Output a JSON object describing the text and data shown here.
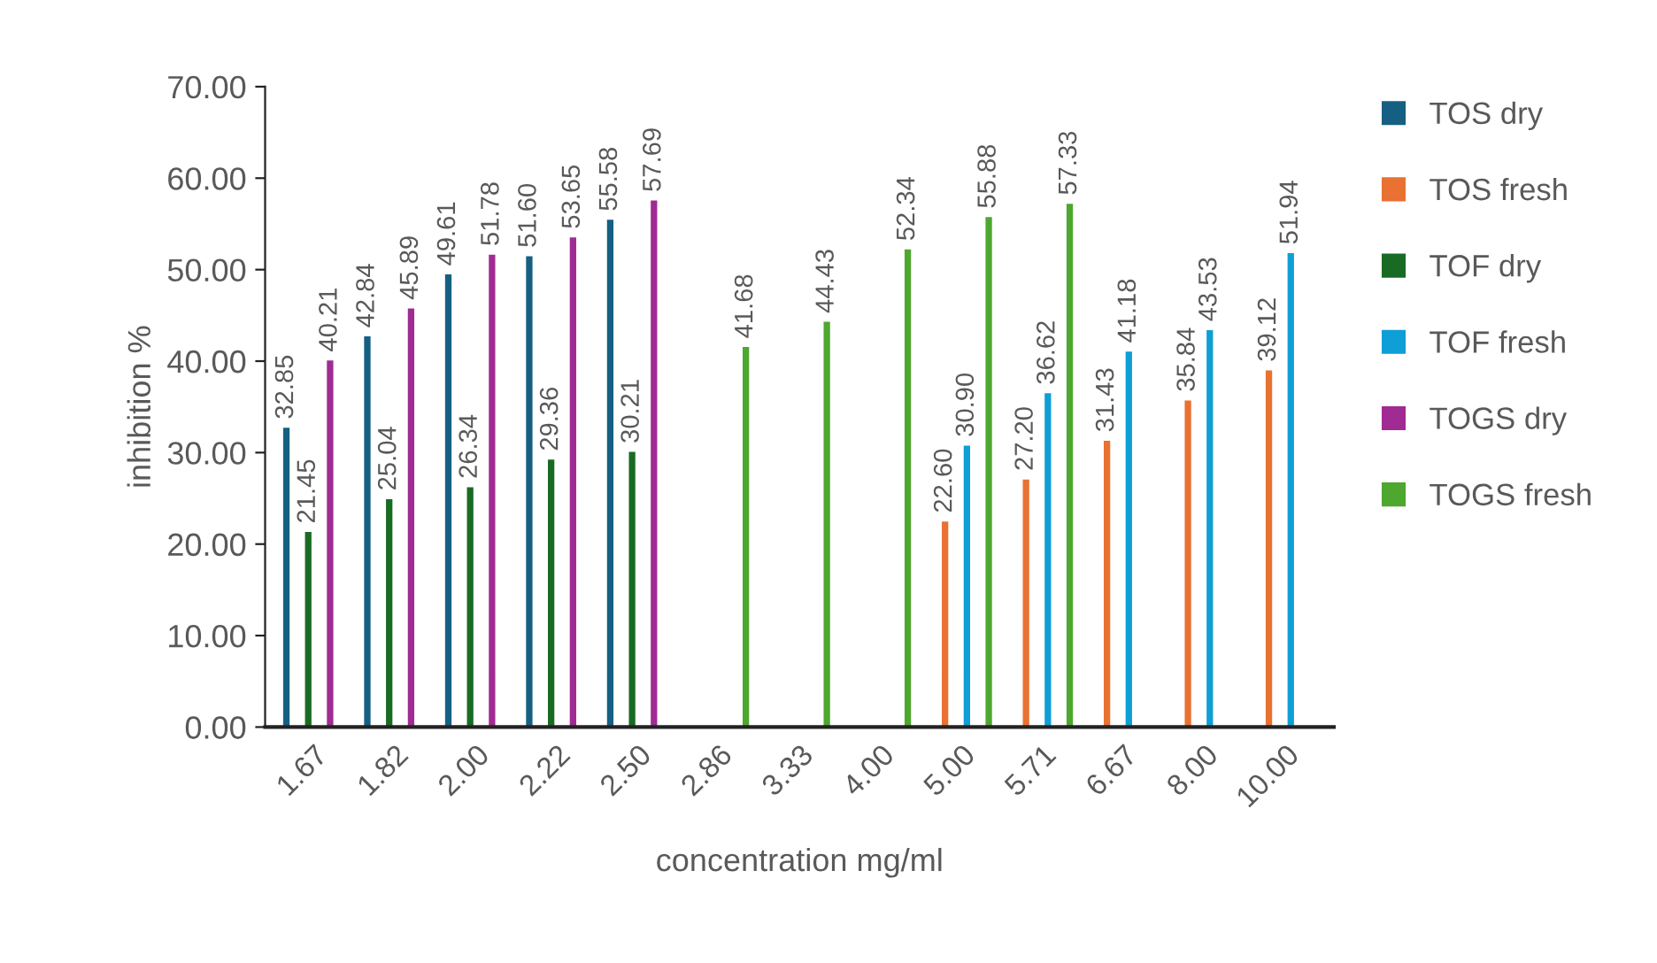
{
  "chart_data": {
    "type": "bar",
    "xlabel": "concentration mg/ml",
    "ylabel": "inhibition %",
    "categories": [
      "1.67",
      "1.82",
      "2.00",
      "2.22",
      "2.50",
      "2.86",
      "3.33",
      "4.00",
      "5.00",
      "5.71",
      "6.67",
      "8.00",
      "10.00"
    ],
    "series": [
      {
        "name": "TOS dry",
        "color": "#156082",
        "values": [
          32.85,
          42.84,
          49.61,
          51.6,
          55.58,
          null,
          null,
          null,
          null,
          null,
          null,
          null,
          null
        ],
        "value_labels": [
          "32.85",
          "42.84",
          "49.61",
          "51.60",
          "55.58",
          null,
          null,
          null,
          null,
          null,
          null,
          null,
          null
        ]
      },
      {
        "name": "TOS fresh",
        "color": "#e97132",
        "values": [
          null,
          null,
          null,
          null,
          null,
          null,
          null,
          null,
          22.6,
          27.2,
          31.43,
          35.84,
          39.12
        ],
        "value_labels": [
          null,
          null,
          null,
          null,
          null,
          null,
          null,
          null,
          "22.60",
          "27.20",
          "31.43",
          "35.84",
          "39.12"
        ]
      },
      {
        "name": "TOF dry",
        "color": "#196b24",
        "values": [
          21.45,
          25.04,
          26.34,
          29.36,
          30.21,
          null,
          null,
          null,
          null,
          null,
          null,
          null,
          null
        ],
        "value_labels": [
          "21.45",
          "25.04",
          "26.34",
          "29.36",
          "30.21",
          null,
          null,
          null,
          null,
          null,
          null,
          null,
          null
        ]
      },
      {
        "name": "TOF fresh",
        "color": "#0f9ed5",
        "values": [
          null,
          null,
          null,
          null,
          null,
          null,
          null,
          null,
          30.9,
          36.62,
          41.18,
          43.53,
          51.94
        ],
        "value_labels": [
          null,
          null,
          null,
          null,
          null,
          null,
          null,
          null,
          "30.90",
          "36.62",
          "41.18",
          "43.53",
          "51.94"
        ]
      },
      {
        "name": "TOGS dry",
        "color": "#a02b93",
        "values": [
          40.21,
          45.89,
          51.78,
          53.65,
          57.69,
          null,
          null,
          null,
          null,
          null,
          null,
          null,
          null
        ],
        "value_labels": [
          "40.21",
          "45.89",
          "51.78",
          "53.65",
          "57.69",
          null,
          null,
          null,
          null,
          null,
          null,
          null,
          null
        ]
      },
      {
        "name": "TOGS fresh",
        "color": "#4ea72e",
        "values": [
          null,
          null,
          null,
          null,
          null,
          41.68,
          44.43,
          52.34,
          55.88,
          57.33,
          null,
          null,
          null
        ],
        "value_labels": [
          null,
          null,
          null,
          null,
          null,
          "41.68",
          "44.43",
          "52.34",
          "55.88",
          "57.33",
          null,
          null,
          null
        ]
      }
    ],
    "ylim": [
      0,
      70
    ],
    "yticks": [
      {
        "value": 0,
        "label": "0.00"
      },
      {
        "value": 10,
        "label": "10.00"
      },
      {
        "value": 20,
        "label": "20.00"
      },
      {
        "value": 30,
        "label": "30.00"
      },
      {
        "value": 40,
        "label": "40.00"
      },
      {
        "value": 50,
        "label": "50.00"
      },
      {
        "value": 60,
        "label": "60.00"
      },
      {
        "value": 70,
        "label": "70.00"
      }
    ],
    "grid": false,
    "legend": "right"
  }
}
